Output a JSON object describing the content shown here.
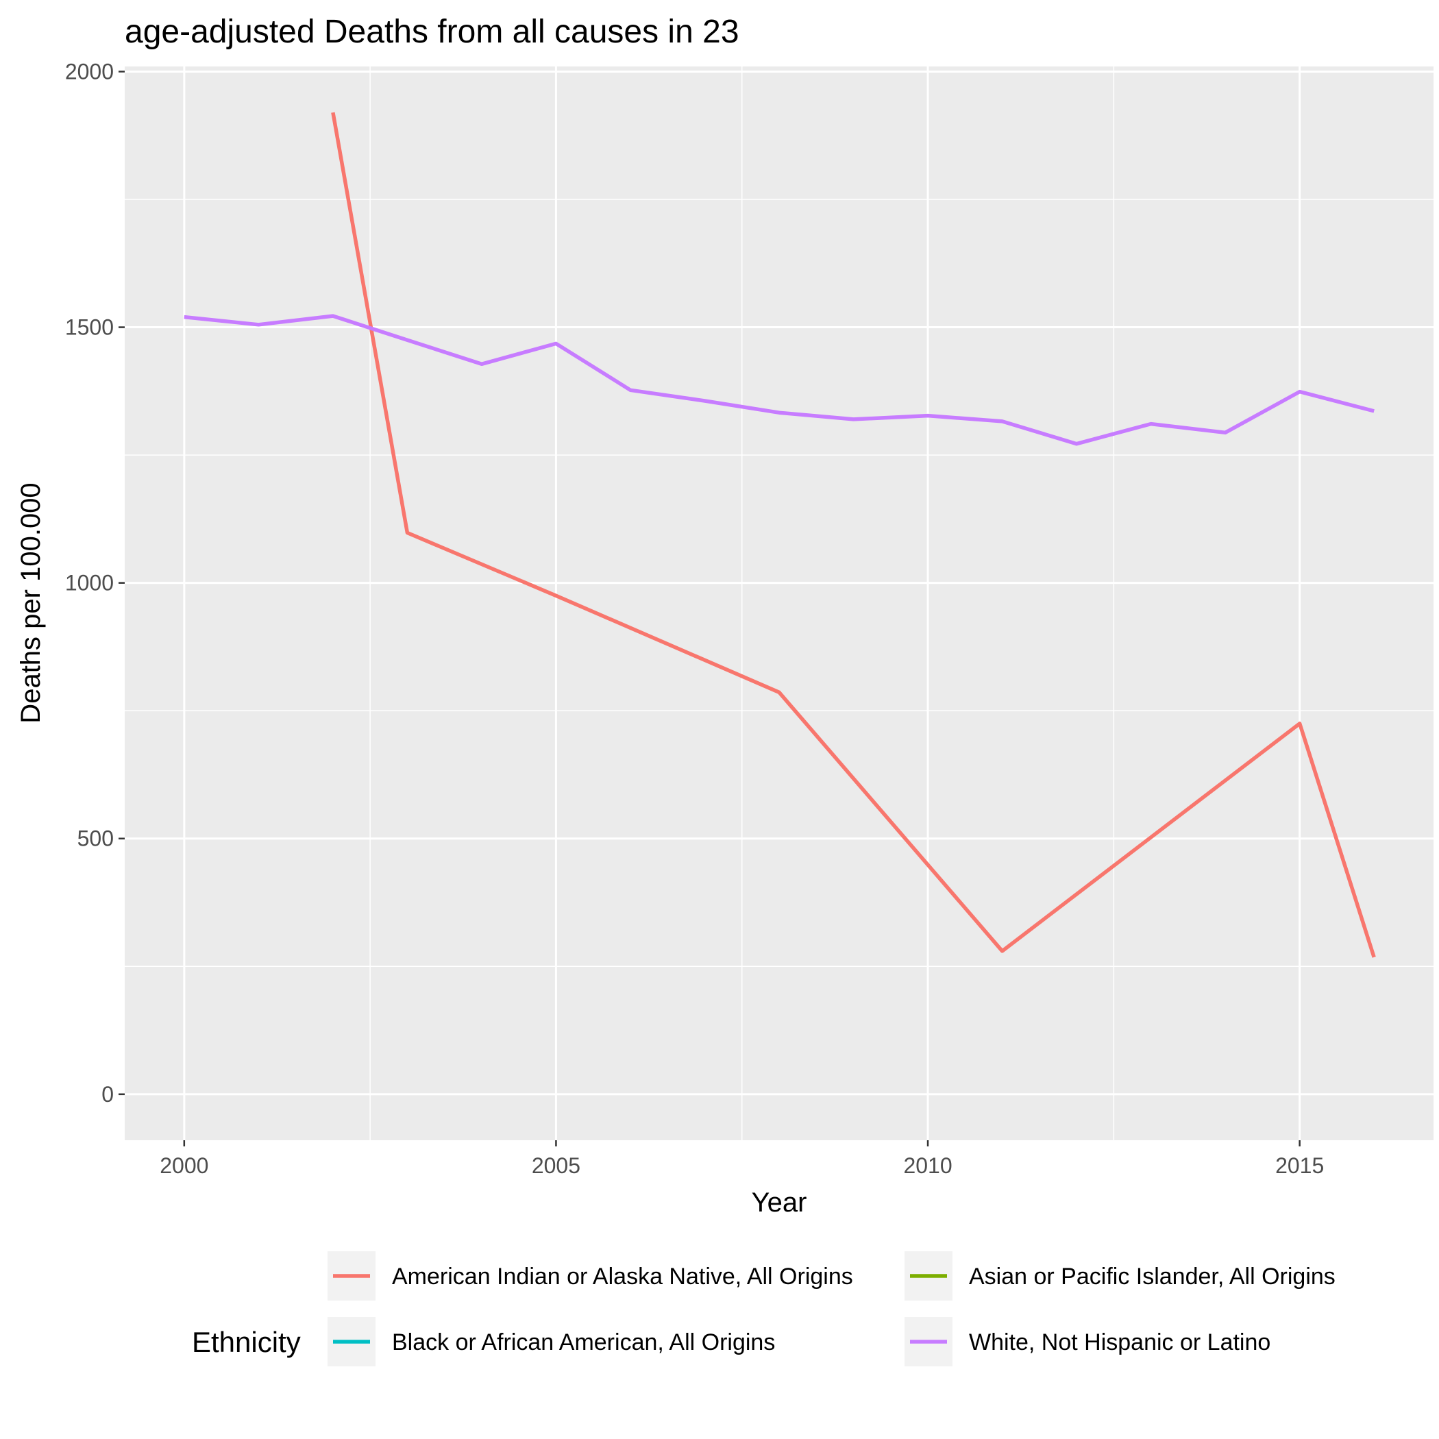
{
  "chart_data": {
    "type": "line",
    "title": "age-adjusted Deaths from all causes in 23",
    "xlabel": "Year",
    "ylabel": "Deaths per 100.000",
    "xlim": [
      1999.2,
      2016.8
    ],
    "ylim": [
      -90,
      2010
    ],
    "x_ticks": [
      2000,
      2005,
      2010,
      2015
    ],
    "y_ticks": [
      0,
      500,
      1000,
      1500,
      2000
    ],
    "grid": true,
    "legend_title": "Ethnicity",
    "legend_position": "bottom",
    "series": [
      {
        "name": "American Indian or Alaska Native, All Origins",
        "color": "#F8766D",
        "points": [
          [
            2002,
            1920
          ],
          [
            2003,
            1098
          ],
          [
            2005,
            975
          ],
          [
            2008,
            786
          ],
          [
            2011,
            280
          ],
          [
            2015,
            725
          ],
          [
            2016,
            268
          ]
        ]
      },
      {
        "name": "Asian or Pacific Islander, All Origins",
        "color": "#7CAE00",
        "points": []
      },
      {
        "name": "Black or African American, All Origins",
        "color": "#00BFC4",
        "points": []
      },
      {
        "name": "White, Not Hispanic or Latino",
        "color": "#C77CFF",
        "points": [
          [
            2000,
            1520
          ],
          [
            2001,
            1505
          ],
          [
            2002,
            1522
          ],
          [
            2003,
            1475
          ],
          [
            2004,
            1428
          ],
          [
            2005,
            1468
          ],
          [
            2006,
            1377
          ],
          [
            2007,
            1356
          ],
          [
            2008,
            1333
          ],
          [
            2009,
            1320
          ],
          [
            2010,
            1327
          ],
          [
            2011,
            1316
          ],
          [
            2012,
            1272
          ],
          [
            2013,
            1311
          ],
          [
            2014,
            1294
          ],
          [
            2015,
            1374
          ],
          [
            2016,
            1336
          ]
        ]
      }
    ]
  }
}
